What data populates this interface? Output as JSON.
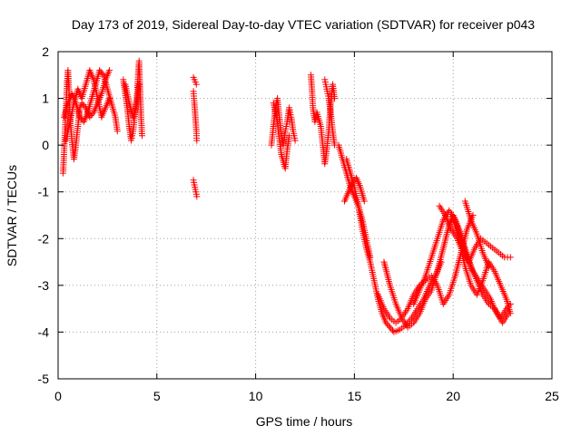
{
  "chart_data": {
    "type": "scatter",
    "title": "Day 173 of 2019, Sidereal Day-to-day VTEC variation (SDTVAR) for receiver p043",
    "xlabel": "GPS time / hours",
    "ylabel": "SDTVAR / TECUs",
    "xlim": [
      0,
      25
    ],
    "ylim": [
      -5,
      2
    ],
    "x_ticks": [
      0,
      5,
      10,
      15,
      20,
      25
    ],
    "y_ticks": [
      -5,
      -4,
      -3,
      -2,
      -1,
      0,
      1,
      2
    ],
    "x_tick_labels": [
      "0",
      "5",
      "10",
      "15",
      "20",
      "25"
    ],
    "y_tick_labels": [
      "-5",
      "-4",
      "-3",
      "-2",
      "-1",
      "0",
      "1",
      "2"
    ],
    "grid": true,
    "legend": "none",
    "marker": "plus",
    "color": "#ff0000",
    "series": [
      {
        "name": "SDTVAR",
        "segments": [
          [
            [
              0.25,
              -0.6
            ],
            [
              0.3,
              -0.2
            ],
            [
              0.35,
              0.3
            ],
            [
              0.4,
              0.8
            ],
            [
              0.45,
              1.3
            ],
            [
              0.5,
              1.6
            ],
            [
              0.55,
              1.2
            ],
            [
              0.6,
              0.6
            ],
            [
              0.7,
              0.1
            ],
            [
              0.8,
              -0.3
            ],
            [
              0.9,
              0.0
            ],
            [
              1.0,
              0.4
            ],
            [
              1.1,
              0.8
            ],
            [
              1.2,
              0.9
            ],
            [
              1.4,
              0.8
            ],
            [
              1.6,
              0.6
            ],
            [
              1.8,
              0.7
            ],
            [
              2.0,
              0.9
            ],
            [
              2.2,
              1.1
            ],
            [
              2.4,
              1.4
            ],
            [
              2.6,
              1.6
            ]
          ],
          [
            [
              0.3,
              0.6
            ],
            [
              0.5,
              0.9
            ],
            [
              0.7,
              1.1
            ],
            [
              0.9,
              0.9
            ],
            [
              1.1,
              0.6
            ],
            [
              1.3,
              0.5
            ],
            [
              1.5,
              0.7
            ],
            [
              1.7,
              1.0
            ],
            [
              1.9,
              1.3
            ],
            [
              2.1,
              1.6
            ],
            [
              2.3,
              1.5
            ],
            [
              2.5,
              1.2
            ],
            [
              2.7,
              0.9
            ],
            [
              2.9,
              0.6
            ],
            [
              3.0,
              0.3
            ]
          ],
          [
            [
              0.4,
              0.1
            ],
            [
              0.6,
              0.5
            ],
            [
              0.8,
              0.9
            ],
            [
              1.0,
              1.2
            ],
            [
              1.2,
              1.0
            ],
            [
              1.4,
              1.3
            ],
            [
              1.6,
              1.6
            ],
            [
              1.8,
              1.4
            ],
            [
              2.0,
              1.0
            ],
            [
              2.2,
              0.6
            ],
            [
              2.4,
              0.8
            ],
            [
              2.6,
              1.0
            ]
          ],
          [
            [
              3.3,
              1.4
            ],
            [
              3.4,
              1.1
            ],
            [
              3.5,
              0.8
            ],
            [
              3.6,
              0.4
            ],
            [
              3.7,
              0.1
            ],
            [
              3.8,
              0.3
            ],
            [
              3.9,
              0.7
            ],
            [
              4.0,
              1.1
            ],
            [
              4.05,
              1.5
            ],
            [
              4.1,
              1.8
            ],
            [
              4.15,
              1.2
            ],
            [
              4.2,
              0.6
            ],
            [
              4.25,
              0.2
            ]
          ],
          [
            [
              3.4,
              1.3
            ],
            [
              3.6,
              0.9
            ],
            [
              3.8,
              0.6
            ],
            [
              4.0,
              0.9
            ],
            [
              4.1,
              1.3
            ]
          ],
          [
            [
              6.85,
              1.45
            ],
            [
              6.9,
              1.4
            ],
            [
              6.95,
              1.35
            ],
            [
              7.0,
              1.3
            ]
          ],
          [
            [
              6.85,
              1.15
            ],
            [
              6.9,
              0.9
            ],
            [
              6.95,
              0.6
            ],
            [
              7.0,
              0.3
            ],
            [
              7.02,
              0.1
            ]
          ],
          [
            [
              6.85,
              -0.75
            ],
            [
              6.9,
              -0.85
            ],
            [
              6.95,
              -0.95
            ],
            [
              7.0,
              -1.05
            ],
            [
              7.02,
              -1.1
            ]
          ],
          [
            [
              10.8,
              0.0
            ],
            [
              10.9,
              0.4
            ],
            [
              11.0,
              0.8
            ],
            [
              11.1,
              1.0
            ],
            [
              11.2,
              0.6
            ],
            [
              11.3,
              0.2
            ],
            [
              11.4,
              0.0
            ],
            [
              11.5,
              0.3
            ],
            [
              11.6,
              0.5
            ],
            [
              11.7,
              0.8
            ],
            [
              11.8,
              0.6
            ],
            [
              11.9,
              0.3
            ],
            [
              12.0,
              0.1
            ]
          ],
          [
            [
              10.9,
              0.9
            ],
            [
              11.1,
              0.5
            ],
            [
              11.3,
              -0.2
            ],
            [
              11.5,
              -0.5
            ],
            [
              11.6,
              -0.1
            ],
            [
              11.7,
              0.2
            ]
          ],
          [
            [
              12.8,
              1.5
            ],
            [
              12.85,
              1.2
            ],
            [
              12.9,
              0.8
            ],
            [
              13.0,
              0.5
            ],
            [
              13.1,
              0.7
            ],
            [
              13.3,
              0.4
            ],
            [
              13.4,
              0.0
            ],
            [
              13.5,
              -0.4
            ],
            [
              13.6,
              -0.1
            ],
            [
              13.7,
              0.3
            ],
            [
              13.8,
              0.9
            ],
            [
              13.9,
              1.3
            ],
            [
              14.0,
              1.0
            ]
          ],
          [
            [
              13.5,
              1.4
            ],
            [
              13.6,
              1.2
            ],
            [
              13.7,
              1.0
            ],
            [
              13.8,
              0.7
            ],
            [
              13.9,
              0.3
            ],
            [
              14.0,
              0.0
            ]
          ],
          [
            [
              14.2,
              0.0
            ],
            [
              14.4,
              -0.3
            ],
            [
              14.6,
              -0.6
            ],
            [
              14.8,
              -0.9
            ],
            [
              15.0,
              -1.1
            ],
            [
              15.2,
              -1.3
            ],
            [
              15.4,
              -1.6
            ],
            [
              15.6,
              -2.0
            ],
            [
              15.8,
              -2.4
            ]
          ],
          [
            [
              14.5,
              -1.2
            ],
            [
              14.7,
              -1.0
            ],
            [
              14.9,
              -0.8
            ],
            [
              15.1,
              -0.7
            ],
            [
              15.3,
              -0.9
            ],
            [
              15.5,
              -1.2
            ]
          ],
          [
            [
              14.6,
              -0.3
            ],
            [
              14.8,
              -0.6
            ],
            [
              15.0,
              -0.9
            ],
            [
              15.2,
              -1.3
            ],
            [
              15.4,
              -1.8
            ],
            [
              15.6,
              -2.2
            ],
            [
              15.8,
              -2.5
            ],
            [
              16.0,
              -2.9
            ],
            [
              16.2,
              -3.3
            ],
            [
              16.4,
              -3.6
            ],
            [
              16.6,
              -3.8
            ],
            [
              16.8,
              -3.9
            ],
            [
              17.0,
              -4.0
            ],
            [
              17.3,
              -3.95
            ],
            [
              17.6,
              -3.85
            ],
            [
              17.9,
              -3.7
            ],
            [
              18.2,
              -3.5
            ],
            [
              18.5,
              -3.3
            ],
            [
              18.8,
              -3.0
            ],
            [
              19.1,
              -2.8
            ],
            [
              19.4,
              -2.5
            ]
          ],
          [
            [
              16.2,
              -3.2
            ],
            [
              16.5,
              -3.5
            ],
            [
              16.8,
              -3.7
            ],
            [
              17.1,
              -3.8
            ],
            [
              17.4,
              -3.7
            ],
            [
              17.7,
              -3.5
            ],
            [
              18.0,
              -3.2
            ],
            [
              18.3,
              -3.0
            ],
            [
              18.6,
              -2.9
            ],
            [
              18.9,
              -2.8
            ],
            [
              19.2,
              -3.0
            ],
            [
              19.5,
              -3.4
            ],
            [
              19.8,
              -3.2
            ],
            [
              20.1,
              -2.8
            ],
            [
              20.4,
              -2.3
            ],
            [
              20.7,
              -1.8
            ],
            [
              21.0,
              -1.5
            ]
          ],
          [
            [
              16.5,
              -2.5
            ],
            [
              16.8,
              -3.0
            ],
            [
              17.1,
              -3.4
            ],
            [
              17.4,
              -3.7
            ],
            [
              17.7,
              -3.9
            ],
            [
              18.0,
              -3.8
            ],
            [
              18.3,
              -3.6
            ],
            [
              18.6,
              -3.3
            ],
            [
              18.9,
              -3.1
            ],
            [
              19.2,
              -2.7
            ],
            [
              19.5,
              -2.2
            ],
            [
              19.8,
              -1.7
            ],
            [
              20.0,
              -1.5
            ],
            [
              20.3,
              -1.8
            ],
            [
              20.6,
              -2.2
            ],
            [
              20.9,
              -2.6
            ],
            [
              21.2,
              -2.9
            ],
            [
              21.5,
              -3.2
            ],
            [
              21.8,
              -3.4
            ],
            [
              22.1,
              -3.5
            ],
            [
              22.4,
              -3.7
            ],
            [
              22.7,
              -3.5
            ],
            [
              22.9,
              -3.4
            ]
          ],
          [
            [
              18.0,
              -3.4
            ],
            [
              18.3,
              -3.1
            ],
            [
              18.6,
              -2.8
            ],
            [
              18.9,
              -2.4
            ],
            [
              19.2,
              -2.0
            ],
            [
              19.5,
              -1.6
            ],
            [
              19.8,
              -1.4
            ],
            [
              20.1,
              -1.6
            ],
            [
              20.4,
              -2.0
            ],
            [
              20.7,
              -2.4
            ],
            [
              21.0,
              -2.7
            ],
            [
              21.3,
              -2.9
            ],
            [
              21.6,
              -3.1
            ],
            [
              21.9,
              -3.3
            ],
            [
              22.2,
              -3.6
            ],
            [
              22.5,
              -3.8
            ],
            [
              22.8,
              -3.6
            ]
          ],
          [
            [
              19.3,
              -1.3
            ],
            [
              19.6,
              -1.5
            ],
            [
              19.9,
              -1.8
            ],
            [
              20.2,
              -2.0
            ],
            [
              20.5,
              -2.3
            ],
            [
              20.8,
              -2.5
            ],
            [
              21.1,
              -2.2
            ],
            [
              21.4,
              -2.0
            ],
            [
              21.7,
              -2.1
            ],
            [
              22.0,
              -2.2
            ],
            [
              22.3,
              -2.3
            ],
            [
              22.6,
              -2.4
            ],
            [
              22.9,
              -2.4
            ]
          ],
          [
            [
              20.0,
              -1.6
            ],
            [
              20.3,
              -2.0
            ],
            [
              20.6,
              -2.6
            ],
            [
              20.9,
              -3.0
            ],
            [
              21.2,
              -3.2
            ],
            [
              21.5,
              -2.9
            ],
            [
              21.8,
              -2.5
            ],
            [
              22.1,
              -2.7
            ],
            [
              22.4,
              -3.0
            ],
            [
              22.7,
              -3.3
            ],
            [
              22.9,
              -3.6
            ]
          ],
          [
            [
              20.6,
              -1.2
            ],
            [
              20.9,
              -1.6
            ],
            [
              21.2,
              -1.9
            ],
            [
              21.5,
              -2.3
            ],
            [
              21.8,
              -2.6
            ]
          ]
        ]
      }
    ]
  }
}
